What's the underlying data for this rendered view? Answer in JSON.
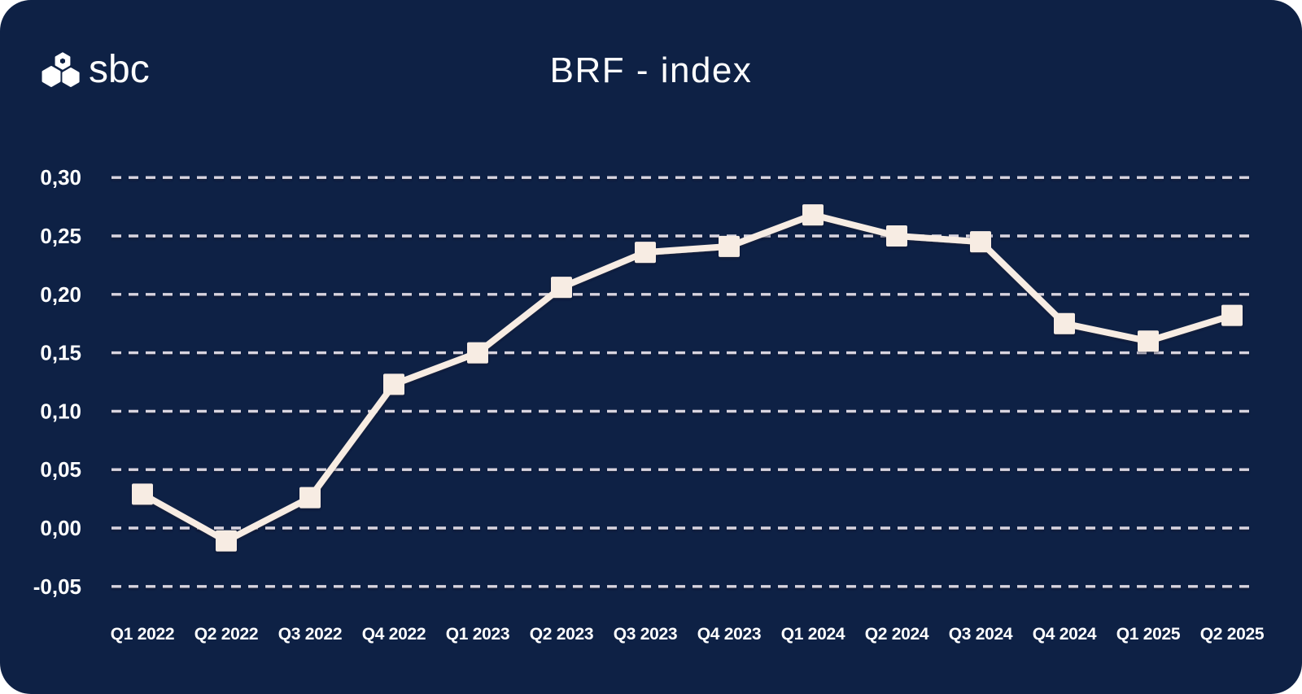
{
  "logo": {
    "text": "sbc",
    "icon": "three-hexagons-cluster"
  },
  "chart_data": {
    "type": "line",
    "title": "BRF - index",
    "series_name": "BRF index",
    "categories": [
      "Q1 2022",
      "Q2 2022",
      "Q3 2022",
      "Q4 2022",
      "Q1 2023",
      "Q2 2023",
      "Q3 2023",
      "Q4 2023",
      "Q1 2024",
      "Q2 2024",
      "Q3 2024",
      "Q4 2024",
      "Q1 2025",
      "Q2 2025"
    ],
    "values": [
      0.029,
      -0.011,
      0.026,
      0.123,
      0.15,
      0.206,
      0.236,
      0.241,
      0.268,
      0.25,
      0.245,
      0.175,
      0.16,
      0.182
    ],
    "yticks": [
      "0,30",
      "0,25",
      "0,20",
      "0,15",
      "0,10",
      "0,05",
      "0,00",
      "-0,05"
    ],
    "ytick_values": [
      0.3,
      0.25,
      0.2,
      0.15,
      0.1,
      0.05,
      0.0,
      -0.05
    ],
    "ylim": [
      -0.08,
      0.33
    ],
    "xlabel": "",
    "ylabel": "",
    "grid": "dashed-horizontal",
    "legend_position": "none",
    "marker_shape": "square",
    "decimal_separator": ",",
    "colors": {
      "card_background": "#0E2145",
      "page_background": "#FFFFFF",
      "line": "#F7ECE3",
      "marker": "#F7ECE3",
      "gridline": "#D8D4DF",
      "text": "#FFFFFF"
    }
  }
}
